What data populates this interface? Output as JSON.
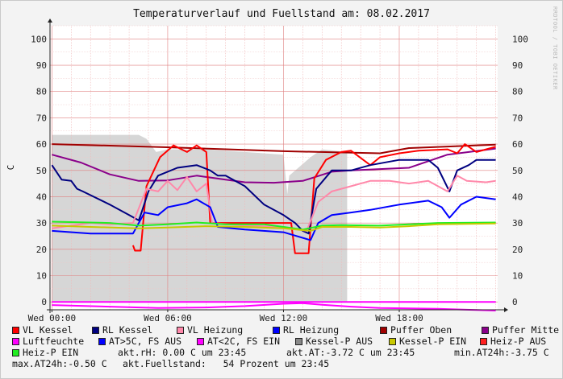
{
  "chart_data": {
    "type": "line",
    "title": "Temperaturverlauf und Fuellstand am: 08.02.2017",
    "ylabel": "C",
    "ylim": [
      -3,
      105
    ],
    "y_ticks": [
      0,
      10,
      20,
      30,
      40,
      50,
      60,
      70,
      80,
      90,
      100
    ],
    "x_range_hours": [
      -0.1,
      23.1
    ],
    "x_ticks": [
      {
        "hour": 0,
        "label": "Wed 00:00"
      },
      {
        "hour": 6,
        "label": "Wed 06:00"
      },
      {
        "hour": 12,
        "label": "Wed 12:00"
      },
      {
        "hour": 18,
        "label": "Wed 18:00"
      }
    ],
    "grid": true,
    "fill_series": {
      "name": "Kessel-P AUS",
      "color": "#d6d6d6",
      "points": [
        [
          0,
          63.5
        ],
        [
          4.5,
          63.5
        ],
        [
          4.9,
          62
        ],
        [
          5.4,
          57
        ],
        [
          6,
          58
        ],
        [
          7,
          58
        ],
        [
          8,
          58
        ],
        [
          10,
          57
        ],
        [
          12,
          56
        ],
        [
          12.2,
          41
        ],
        [
          12.3,
          48
        ],
        [
          13.4,
          55
        ],
        [
          14,
          58
        ],
        [
          15.3,
          57
        ],
        [
          15.3,
          0
        ]
      ]
    },
    "series": [
      {
        "name": "Puffer Oben",
        "color": "#a00000",
        "points": [
          [
            0,
            60
          ],
          [
            6,
            58.8
          ],
          [
            12,
            57.3
          ],
          [
            17,
            56.5
          ],
          [
            18.5,
            58.5
          ],
          [
            23,
            59.8
          ]
        ]
      },
      {
        "name": "Puffer Mitte",
        "color": "#8a008a",
        "points": [
          [
            0,
            56
          ],
          [
            1.5,
            53
          ],
          [
            3,
            48.5
          ],
          [
            4.5,
            46
          ],
          [
            6,
            46.2
          ],
          [
            7.5,
            48
          ],
          [
            9,
            46.5
          ],
          [
            10,
            45.5
          ],
          [
            11.5,
            45.3
          ],
          [
            13,
            46
          ],
          [
            14.5,
            49.5
          ],
          [
            15.5,
            50
          ],
          [
            17,
            50.5
          ],
          [
            18.5,
            51
          ],
          [
            20.5,
            56
          ],
          [
            23,
            58.3
          ]
        ]
      },
      {
        "name": "VL Kessel",
        "color": "#ff0000",
        "points": [
          [
            4.2,
            21.5
          ],
          [
            4.3,
            19.5
          ],
          [
            4.6,
            19.5
          ],
          [
            4.9,
            44
          ],
          [
            5.6,
            55
          ],
          [
            6.3,
            59.5
          ],
          [
            7,
            57
          ],
          [
            7.5,
            59.5
          ],
          [
            8,
            57
          ],
          [
            8.2,
            30
          ],
          [
            12.4,
            30
          ],
          [
            12.6,
            18.5
          ],
          [
            13.3,
            18.5
          ],
          [
            13.6,
            47
          ],
          [
            14.2,
            54
          ],
          [
            15,
            57
          ],
          [
            15.5,
            57.5
          ],
          [
            16.5,
            52
          ],
          [
            17,
            55
          ],
          [
            18,
            56.5
          ],
          [
            19,
            57.5
          ],
          [
            20.5,
            58
          ],
          [
            21,
            56.5
          ],
          [
            21.4,
            60
          ],
          [
            22,
            57
          ],
          [
            23,
            59
          ]
        ]
      },
      {
        "name": "RL Kessel",
        "color": "#000080",
        "points": [
          [
            0,
            52
          ],
          [
            0.5,
            46.5
          ],
          [
            1,
            46
          ],
          [
            1.3,
            43
          ],
          [
            1.6,
            42
          ],
          [
            3,
            37
          ],
          [
            4,
            33
          ],
          [
            4.5,
            31
          ],
          [
            4.6,
            33
          ],
          [
            5,
            42
          ],
          [
            5.5,
            48
          ],
          [
            6.5,
            51
          ],
          [
            7.5,
            52
          ],
          [
            8.2,
            50
          ],
          [
            8.6,
            48
          ],
          [
            9,
            48
          ],
          [
            10,
            44
          ],
          [
            11,
            37
          ],
          [
            12,
            33
          ],
          [
            12.6,
            30
          ],
          [
            13,
            27
          ],
          [
            13.3,
            26
          ],
          [
            13.7,
            43
          ],
          [
            14.5,
            50
          ],
          [
            15.5,
            50
          ],
          [
            16.5,
            52
          ],
          [
            18,
            54
          ],
          [
            19.5,
            54
          ],
          [
            20,
            51
          ],
          [
            20.6,
            42
          ],
          [
            21,
            50
          ],
          [
            21.6,
            52
          ],
          [
            22,
            54
          ],
          [
            23,
            54
          ]
        ]
      },
      {
        "name": "VL Heizung",
        "color": "#ff88aa",
        "points": [
          [
            0,
            28
          ],
          [
            1,
            29
          ],
          [
            2,
            30
          ],
          [
            3,
            29.5
          ],
          [
            4.2,
            30
          ],
          [
            4.9,
            43
          ],
          [
            5.5,
            42
          ],
          [
            6,
            46
          ],
          [
            6.5,
            42.5
          ],
          [
            7,
            47.5
          ],
          [
            7.5,
            42
          ],
          [
            8,
            45
          ],
          [
            8.3,
            30
          ],
          [
            10,
            29
          ],
          [
            12,
            28.5
          ],
          [
            13.2,
            27
          ],
          [
            13.8,
            38
          ],
          [
            14.5,
            42
          ],
          [
            15.5,
            44
          ],
          [
            16.5,
            46
          ],
          [
            17.5,
            46
          ],
          [
            18.5,
            45
          ],
          [
            19.5,
            46
          ],
          [
            20.5,
            42
          ],
          [
            21,
            48
          ],
          [
            21.5,
            46
          ],
          [
            22.5,
            45.5
          ],
          [
            23,
            46
          ]
        ]
      },
      {
        "name": "RL Heizung",
        "color": "#0000ff",
        "points": [
          [
            0,
            27
          ],
          [
            2,
            26
          ],
          [
            4.2,
            26
          ],
          [
            4.8,
            34
          ],
          [
            5.5,
            33
          ],
          [
            6,
            36
          ],
          [
            7,
            37.5
          ],
          [
            7.5,
            39
          ],
          [
            8.2,
            36
          ],
          [
            8.6,
            28.5
          ],
          [
            10,
            27.5
          ],
          [
            12,
            26.5
          ],
          [
            13.4,
            23.5
          ],
          [
            13.8,
            30
          ],
          [
            14.5,
            33
          ],
          [
            15.5,
            34
          ],
          [
            16.5,
            35
          ],
          [
            18,
            37
          ],
          [
            19.5,
            38.5
          ],
          [
            20.2,
            36
          ],
          [
            20.6,
            32
          ],
          [
            21.2,
            37
          ],
          [
            22,
            40
          ],
          [
            23,
            39
          ]
        ]
      },
      {
        "name": "Heiz-P EIN",
        "color": "#22ee22",
        "points": [
          [
            0,
            30.5
          ],
          [
            3,
            30
          ],
          [
            4.5,
            29
          ],
          [
            6,
            29.5
          ],
          [
            7.5,
            30.2
          ],
          [
            9,
            29.5
          ],
          [
            11,
            29.5
          ],
          [
            13,
            27.5
          ],
          [
            14,
            29
          ],
          [
            15,
            29.2
          ],
          [
            17,
            29
          ],
          [
            18.5,
            29.5
          ],
          [
            20,
            30
          ],
          [
            23,
            30.2
          ]
        ]
      },
      {
        "name": "Kessel-P EIN",
        "color": "#c8c800",
        "points": [
          [
            0,
            29
          ],
          [
            2,
            28.5
          ],
          [
            4.5,
            28
          ],
          [
            6,
            28.3
          ],
          [
            8,
            28.8
          ],
          [
            10,
            28.5
          ],
          [
            12,
            28
          ],
          [
            13.4,
            27
          ],
          [
            14,
            28.5
          ],
          [
            15.5,
            28.5
          ],
          [
            17,
            28.3
          ],
          [
            18.5,
            28.8
          ],
          [
            20,
            29.5
          ],
          [
            23,
            29.8
          ]
        ]
      },
      {
        "name": "Luftfeuchte",
        "color": "#ff00ff",
        "points": [
          [
            0,
            -1.2
          ],
          [
            3,
            -1.8
          ],
          [
            5.5,
            -2.3
          ],
          [
            8,
            -2.1
          ],
          [
            10,
            -1.6
          ],
          [
            12,
            -0.7
          ],
          [
            13,
            -0.5
          ],
          [
            14,
            -1.1
          ],
          [
            15.5,
            -1.8
          ],
          [
            17,
            -2.3
          ],
          [
            20,
            -2.6
          ],
          [
            23,
            -3.3
          ]
        ]
      },
      {
        "name": "AT>5C, FS AUS",
        "color": "#0000ff",
        "points": []
      },
      {
        "name": "AT<2C, FS EIN",
        "color": "#ff00ff",
        "points": [
          [
            0,
            0
          ],
          [
            23,
            0
          ]
        ]
      },
      {
        "name": "Heiz-P AUS",
        "color": "#ff2020",
        "points": []
      }
    ]
  },
  "side_text": "RRDTOOL / TOBI OETIKER",
  "legend_rows": [
    [
      {
        "label": "VL Kessel",
        "color": "#ff0000"
      },
      {
        "label": "RL Kessel",
        "color": "#000080"
      },
      {
        "label": "VL Heizung",
        "color": "#ff88aa"
      },
      {
        "label": "RL Heizung",
        "color": "#0000ff"
      },
      {
        "label": "Puffer Oben",
        "color": "#a00000"
      },
      {
        "label": "Puffer Mitte",
        "color": "#8a008a"
      }
    ],
    [
      {
        "label": "Luftfeuchte",
        "color": "#ff00ff"
      },
      {
        "label": "AT>5C, FS AUS",
        "color": "#0000ff"
      },
      {
        "label": "AT<2C, FS EIN",
        "color": "#ff00ff"
      },
      {
        "label": "Kessel-P AUS",
        "color": "#888888"
      },
      {
        "label": "Kessel-P EIN",
        "color": "#c8c800"
      },
      {
        "label": "Heiz-P AUS",
        "color": "#ff2020"
      }
    ]
  ],
  "status": {
    "heiz_p_ein": {
      "label": "Heiz-P EIN",
      "color": "#22ee22"
    },
    "akt_rh": "akt.rH: 0.00 C um 23:45",
    "akt_at": "akt.AT:-3.72 C um 23:45",
    "min_at": "min.AT24h:-3.75 C",
    "max_at": "max.AT24h:-0.50 C",
    "fuellstand": "akt.Fuellstand:   54 Prozent um 23:45"
  }
}
